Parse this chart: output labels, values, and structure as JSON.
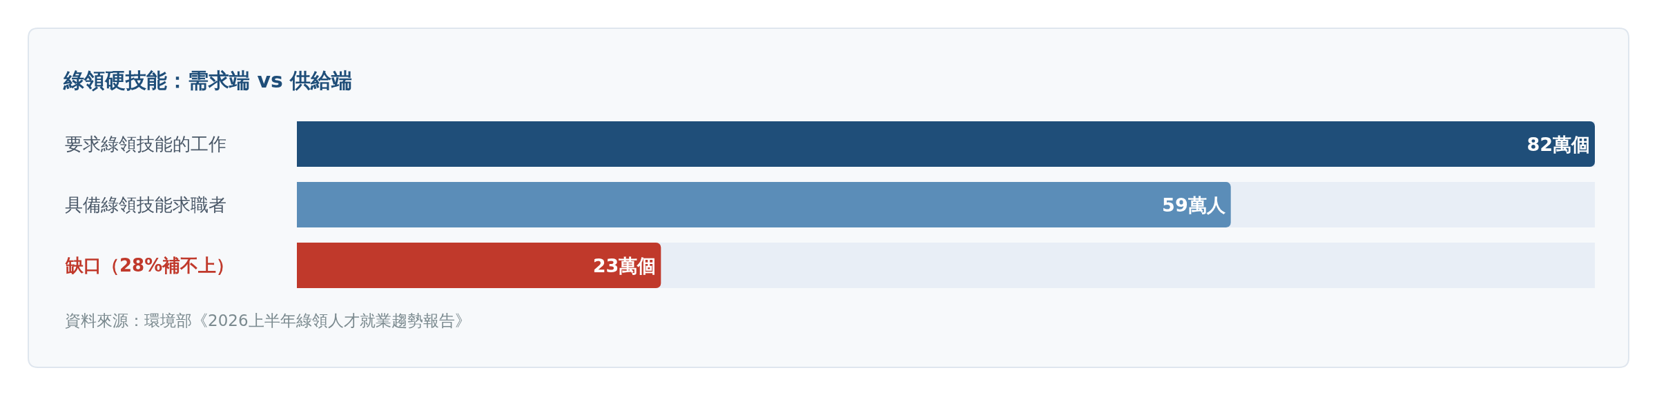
{
  "chart_data": {
    "type": "bar",
    "orientation": "horizontal",
    "title": "綠領硬技能：需求端 vs 供給端",
    "categories": [
      "要求綠領技能的工作",
      "具備綠領技能求職者",
      "缺口（28%補不上）"
    ],
    "values": [
      82,
      59,
      23
    ],
    "colors": [
      "#1f4e79",
      "#5b8db8",
      "#c0392b"
    ],
    "value_labels": [
      "82萬個",
      "59萬人",
      "23萬個"
    ],
    "xlim": [
      0,
      82
    ],
    "tick_labels": "y",
    "annotations": [
      "資料來源：環境部《2026上半年綠領人才就業趨勢報告》"
    ]
  }
}
